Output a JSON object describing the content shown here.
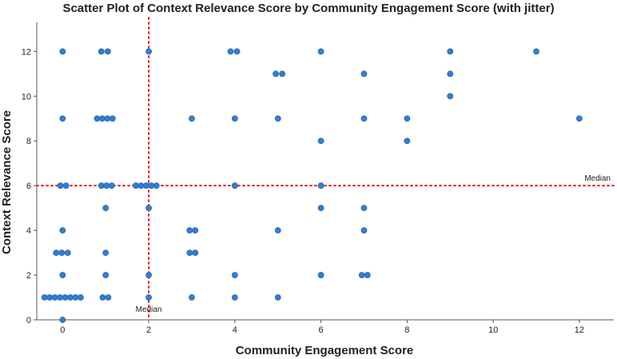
{
  "chart_data": {
    "type": "scatter",
    "title": "Scatter Plot of Context Relevance Score by Community Engagement Score (with jitter)",
    "xlabel": "Community Engagement Score",
    "ylabel": "Context Relevance Score",
    "xlim": [
      -0.6,
      12.8
    ],
    "ylim": [
      0,
      13.3
    ],
    "x_ticks": [
      0,
      2,
      4,
      6,
      8,
      10,
      12
    ],
    "y_ticks": [
      0,
      2,
      4,
      6,
      8,
      10,
      12
    ],
    "grid": false,
    "point_color": "#2f7fd2",
    "reference_line_color": "#e8202a",
    "reference_lines": [
      {
        "axis": "x",
        "value": 2,
        "label": "Median"
      },
      {
        "axis": "y",
        "value": 6,
        "label": "Median"
      }
    ],
    "points": [
      {
        "x": 0,
        "y": 12
      },
      {
        "x": 0.9,
        "y": 12
      },
      {
        "x": 1.05,
        "y": 12
      },
      {
        "x": 2,
        "y": 12
      },
      {
        "x": 3.9,
        "y": 12
      },
      {
        "x": 4.05,
        "y": 12
      },
      {
        "x": 6,
        "y": 12
      },
      {
        "x": 9,
        "y": 12
      },
      {
        "x": 11,
        "y": 12
      },
      {
        "x": 4.95,
        "y": 11
      },
      {
        "x": 5.1,
        "y": 11
      },
      {
        "x": 7,
        "y": 11
      },
      {
        "x": 9,
        "y": 11
      },
      {
        "x": 9,
        "y": 10
      },
      {
        "x": 0,
        "y": 9
      },
      {
        "x": 0.8,
        "y": 9
      },
      {
        "x": 0.92,
        "y": 9
      },
      {
        "x": 1.04,
        "y": 9
      },
      {
        "x": 1.16,
        "y": 9
      },
      {
        "x": 3,
        "y": 9
      },
      {
        "x": 4,
        "y": 9
      },
      {
        "x": 5,
        "y": 9
      },
      {
        "x": 7,
        "y": 9
      },
      {
        "x": 8,
        "y": 9
      },
      {
        "x": 12,
        "y": 9
      },
      {
        "x": 6,
        "y": 8
      },
      {
        "x": 8,
        "y": 8
      },
      {
        "x": -0.05,
        "y": 6
      },
      {
        "x": 0.08,
        "y": 6
      },
      {
        "x": 0.9,
        "y": 6
      },
      {
        "x": 1.02,
        "y": 6
      },
      {
        "x": 1.14,
        "y": 6
      },
      {
        "x": 1.7,
        "y": 6
      },
      {
        "x": 1.82,
        "y": 6
      },
      {
        "x": 1.94,
        "y": 6
      },
      {
        "x": 2.06,
        "y": 6
      },
      {
        "x": 2.18,
        "y": 6
      },
      {
        "x": 4,
        "y": 6
      },
      {
        "x": 6,
        "y": 6
      },
      {
        "x": 1,
        "y": 5
      },
      {
        "x": 2,
        "y": 5
      },
      {
        "x": 6,
        "y": 5
      },
      {
        "x": 7,
        "y": 5
      },
      {
        "x": 0,
        "y": 4
      },
      {
        "x": 2.95,
        "y": 4
      },
      {
        "x": 3.08,
        "y": 4
      },
      {
        "x": 5,
        "y": 4
      },
      {
        "x": 7,
        "y": 4
      },
      {
        "x": -0.15,
        "y": 3
      },
      {
        "x": -0.02,
        "y": 3
      },
      {
        "x": 0.12,
        "y": 3
      },
      {
        "x": 1,
        "y": 3
      },
      {
        "x": 2.95,
        "y": 3
      },
      {
        "x": 3.08,
        "y": 3
      },
      {
        "x": 0,
        "y": 2
      },
      {
        "x": 1,
        "y": 2
      },
      {
        "x": 2,
        "y": 2
      },
      {
        "x": 4,
        "y": 2
      },
      {
        "x": 6,
        "y": 2
      },
      {
        "x": 6.95,
        "y": 2
      },
      {
        "x": 7.08,
        "y": 2
      },
      {
        "x": -0.42,
        "y": 1
      },
      {
        "x": -0.3,
        "y": 1
      },
      {
        "x": -0.18,
        "y": 1
      },
      {
        "x": -0.06,
        "y": 1
      },
      {
        "x": 0.06,
        "y": 1
      },
      {
        "x": 0.18,
        "y": 1
      },
      {
        "x": 0.3,
        "y": 1
      },
      {
        "x": 0.42,
        "y": 1
      },
      {
        "x": 0.93,
        "y": 1
      },
      {
        "x": 1.06,
        "y": 1
      },
      {
        "x": 2,
        "y": 1
      },
      {
        "x": 3,
        "y": 1
      },
      {
        "x": 4,
        "y": 1
      },
      {
        "x": 5,
        "y": 1
      },
      {
        "x": 0,
        "y": 0
      }
    ]
  }
}
